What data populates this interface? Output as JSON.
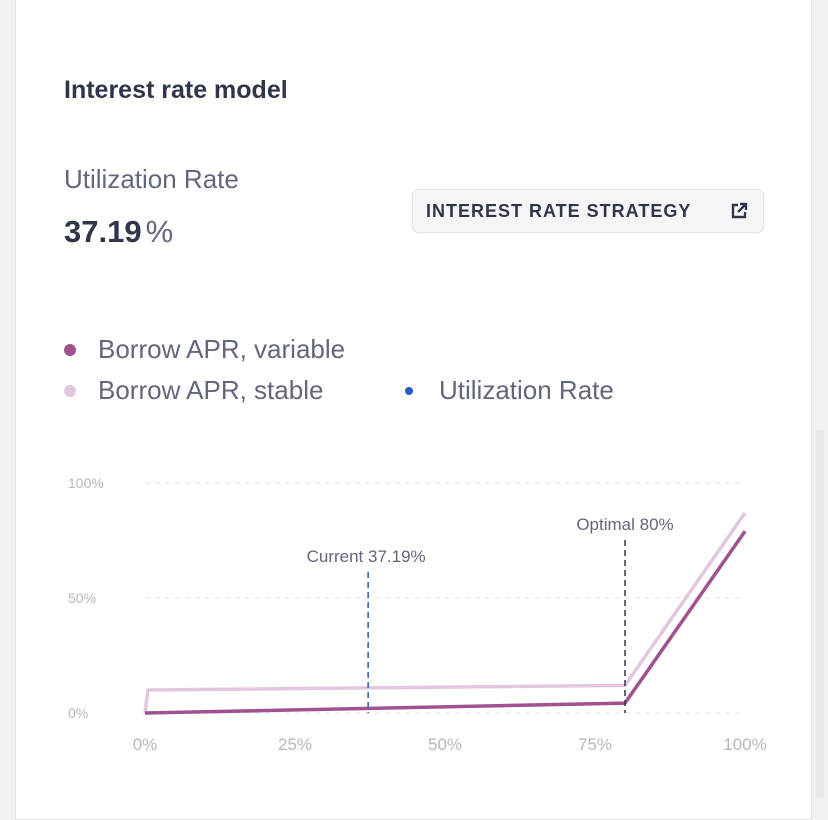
{
  "title": "Interest rate model",
  "utilization": {
    "label": "Utilization Rate",
    "value": "37.19",
    "unit": "%"
  },
  "strategy_button": {
    "label": "INTEREST RATE STRATEGY",
    "icon": "external-link-icon"
  },
  "legend": [
    {
      "label": "Borrow APR, variable",
      "color": "#a0528f"
    },
    {
      "label": "Borrow APR, stable",
      "color": "#e2c7de"
    },
    {
      "label": "Utilization Rate",
      "color": "#2a5ac8"
    }
  ],
  "chart_data": {
    "type": "line",
    "xlim": [
      0,
      100
    ],
    "ylim": [
      0,
      100
    ],
    "x_ticks": [
      "0%",
      "25%",
      "50%",
      "75%",
      "100%"
    ],
    "y_ticks": [
      "0%",
      "50%",
      "100%"
    ],
    "y_tick_values": [
      0,
      50,
      100
    ],
    "x_tick_values": [
      0,
      25,
      50,
      75,
      100
    ],
    "series": [
      {
        "name": "Borrow APR, variable",
        "color": "#a0528f",
        "points": [
          [
            0,
            0
          ],
          [
            80,
            4.3
          ],
          [
            100,
            79
          ]
        ]
      },
      {
        "name": "Borrow APR, stable",
        "color": "#e2c7de",
        "points": [
          [
            0,
            0
          ],
          [
            0.5,
            10
          ],
          [
            80,
            12
          ],
          [
            100,
            87
          ]
        ]
      }
    ],
    "annotations": [
      {
        "label": "Current 37.19%",
        "x": 37.19,
        "color": "#2a5ac8"
      },
      {
        "label": "Optimal 80%",
        "x": 80,
        "color": "#303549"
      }
    ]
  }
}
